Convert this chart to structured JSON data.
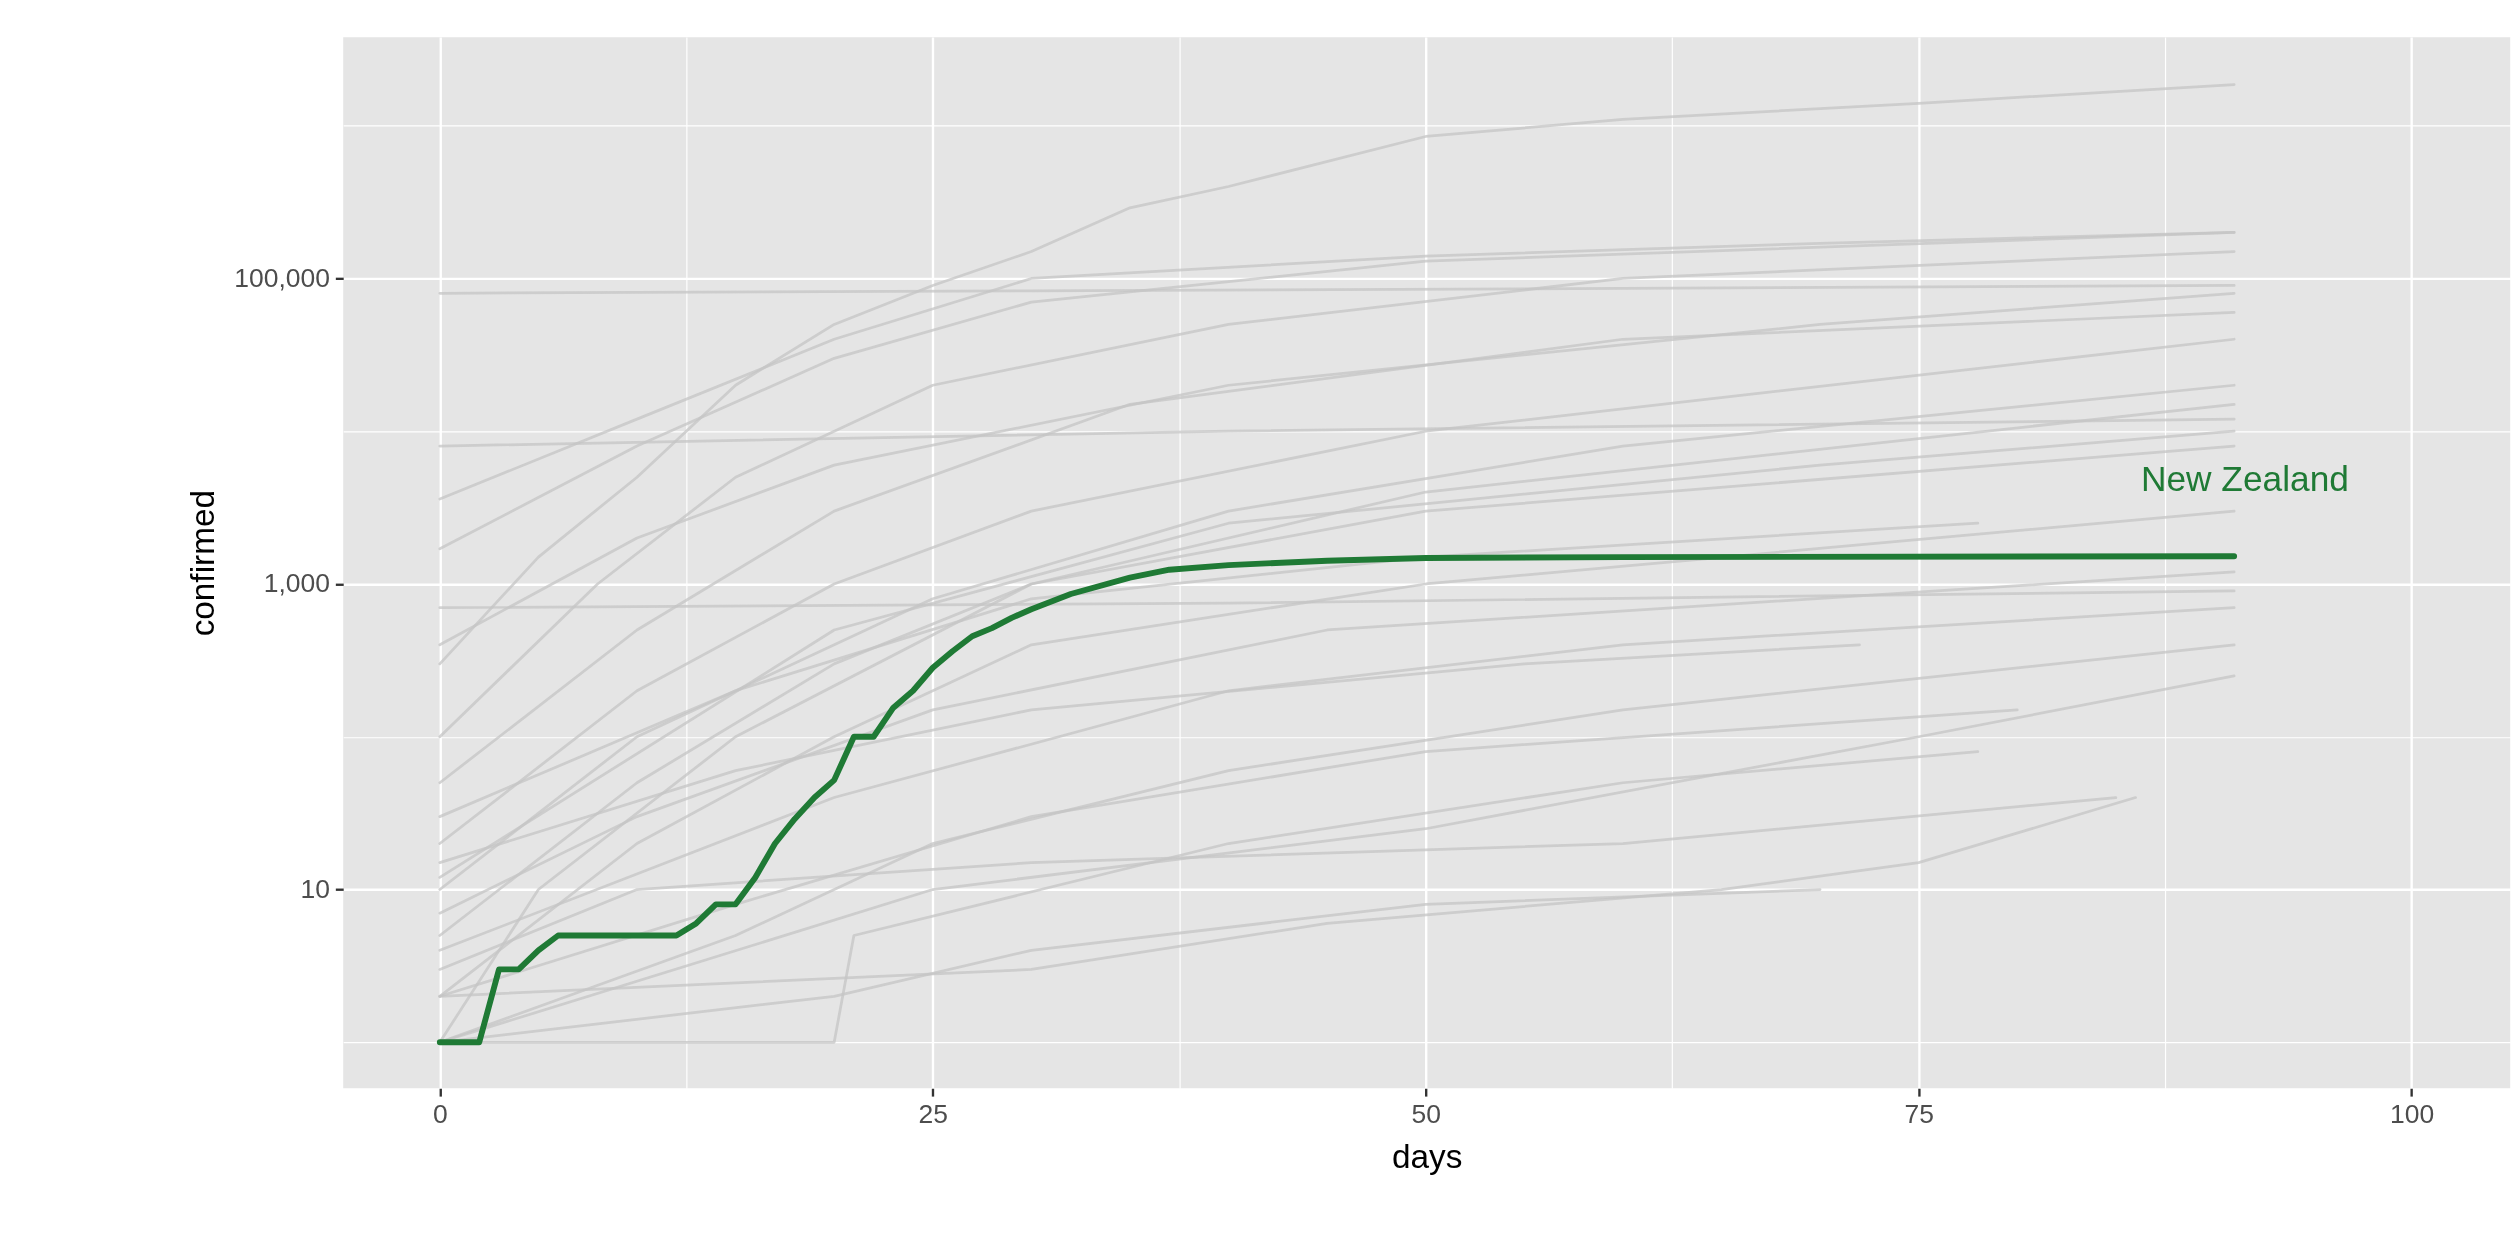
{
  "chart_data": {
    "type": "line",
    "xlabel": "days",
    "ylabel": "confirmed",
    "xlim": [
      -4.9,
      105
    ],
    "xticks": [
      0,
      {
        "value": 12.5,
        "label": null
      },
      25,
      {
        "value": 37.5,
        "label": null
      },
      50,
      {
        "value": 62.5,
        "label": null
      },
      75,
      {
        "value": 87.5,
        "label": null
      },
      100
    ],
    "ylim": [
      0.5,
      3800000
    ],
    "yticks": [
      {
        "value": 1,
        "label": null
      },
      10,
      {
        "value": 100,
        "label": null
      },
      {
        "value": 1000,
        "label": "1,000"
      },
      {
        "value": 10000,
        "label": null
      },
      {
        "value": 100000,
        "label": "100,000"
      },
      {
        "value": 1000000,
        "label": null
      }
    ],
    "log": "y",
    "grid": true,
    "marker": "none",
    "line_style": "solid",
    "series": [
      {
        "color": "#c4c4c4",
        "x": [
          0,
          5,
          10,
          15,
          20,
          25,
          30,
          35,
          40,
          50,
          60,
          75,
          91
        ],
        "values": [
          300,
          1500,
          5000,
          20000,
          50000,
          90000,
          150000,
          290000,
          400000,
          850000,
          1100000,
          1400000,
          1860000
        ]
      },
      {
        "color": "#c4c4c4",
        "x": [
          0,
          30,
          60,
          91
        ],
        "values": [
          80000,
          83000,
          86000,
          90000
        ]
      },
      {
        "color": "#c4c4c4",
        "x": [
          0,
          40,
          91
        ],
        "values": [
          700,
          750,
          900
        ]
      },
      {
        "color": "#c4c4c4",
        "x": [
          0,
          40,
          91
        ],
        "values": [
          8000,
          10000,
          12000
        ]
      },
      {
        "color": "#c4c4c4",
        "x": [
          0,
          10,
          20,
          30,
          50,
          70,
          91
        ],
        "values": [
          3600,
          12000,
          40000,
          100000,
          140000,
          170000,
          200000
        ]
      },
      {
        "color": "#c4c4c4",
        "x": [
          0,
          10,
          20,
          30,
          50,
          91
        ],
        "values": [
          1700,
          8000,
          30000,
          70000,
          130000,
          200000
        ]
      },
      {
        "color": "#c4c4c4",
        "x": [
          0,
          10,
          20,
          30,
          50,
          91
        ],
        "values": [
          20,
          200,
          1000,
          3000,
          10000,
          40000
        ]
      },
      {
        "color": "#c4c4c4",
        "x": [
          0,
          10,
          20,
          30,
          50,
          91
        ],
        "values": [
          5,
          50,
          300,
          1000,
          3000,
          8000
        ]
      },
      {
        "color": "#c4c4c4",
        "x": [
          0,
          10,
          20,
          30,
          50,
          91
        ],
        "values": [
          2,
          20,
          100,
          400,
          1000,
          3000
        ]
      },
      {
        "color": "#c4c4c4",
        "x": [
          0,
          15,
          25,
          40,
          60,
          91
        ],
        "values": [
          1,
          5,
          20,
          60,
          150,
          400
        ]
      },
      {
        "color": "#c4c4c4",
        "x": [
          0,
          20,
          30,
          50,
          70
        ],
        "values": [
          1,
          2,
          4,
          8,
          10
        ]
      },
      {
        "color": "#c4c4c4",
        "x": [
          0,
          10,
          30,
          60,
          85
        ],
        "values": [
          3,
          10,
          15,
          20,
          40
        ]
      },
      {
        "color": "#c4c4c4",
        "x": [
          0,
          10,
          25,
          40,
          60,
          91
        ],
        "values": [
          10,
          100,
          800,
          3000,
          8000,
          20000
        ]
      },
      {
        "color": "#c4c4c4",
        "x": [
          0,
          10,
          20,
          35,
          60,
          91
        ],
        "values": [
          50,
          500,
          3000,
          15000,
          40000,
          60000
        ]
      },
      {
        "color": "#c4c4c4",
        "x": [
          0,
          8,
          15,
          25,
          40,
          60,
          91
        ],
        "values": [
          100,
          1000,
          5000,
          20000,
          50000,
          100000,
          150000
        ]
      },
      {
        "color": "#c4c4c4",
        "x": [
          0,
          15,
          30,
          50,
          78
        ],
        "values": [
          30,
          200,
          800,
          1500,
          2500
        ]
      },
      {
        "color": "#c4c4c4",
        "x": [
          0,
          15,
          30,
          50,
          80
        ],
        "values": [
          2,
          8,
          30,
          80,
          150
        ]
      },
      {
        "color": "#c4c4c4",
        "x": [
          0,
          20,
          40,
          60,
          91
        ],
        "values": [
          4,
          40,
          200,
          400,
          700
        ]
      },
      {
        "color": "#c4c4c4",
        "x": [
          0,
          10,
          25,
          45,
          91
        ],
        "values": [
          7,
          30,
          150,
          500,
          1200
        ]
      },
      {
        "color": "#c4c4c4",
        "x": [
          0,
          5,
          15,
          30,
          50,
          91
        ],
        "values": [
          1,
          10,
          100,
          1000,
          4000,
          15000
        ]
      },
      {
        "color": "#c4c4c4",
        "x": [
          0,
          20,
          40,
          70,
          91
        ],
        "values": [
          12,
          500,
          2500,
          6000,
          10000
        ]
      },
      {
        "color": "#c4c4c4",
        "x": [
          0,
          20,
          21,
          40,
          60,
          78
        ],
        "values": [
          1,
          1,
          5,
          20,
          50,
          80
        ]
      },
      {
        "color": "#c4c4c4",
        "x": [
          0,
          30,
          45,
          65,
          75,
          86
        ],
        "values": [
          2,
          3,
          6,
          10,
          15,
          40
        ]
      },
      {
        "color": "#c4c4c4",
        "x": [
          0,
          25,
          50,
          75,
          91
        ],
        "values": [
          1,
          10,
          25,
          100,
          250
        ]
      },
      {
        "color": "#c4c4c4",
        "x": [
          0,
          10,
          20,
          40,
          70,
          91
        ],
        "values": [
          400,
          2000,
          6000,
          20000,
          50000,
          80000
        ]
      },
      {
        "color": "#c4c4c4",
        "x": [
          0,
          15,
          30,
          55,
          72
        ],
        "values": [
          15,
          60,
          150,
          300,
          400
        ]
      },
      {
        "name": "New Zealand",
        "color": "#1f7a35",
        "x": [
          0,
          2,
          3,
          4,
          5,
          6,
          12,
          13,
          14,
          15,
          16,
          17,
          18,
          19,
          20,
          21,
          22,
          23,
          24,
          25,
          26,
          27,
          28,
          29,
          30,
          32,
          35,
          37,
          40,
          45,
          50,
          60,
          91
        ],
        "values": [
          1,
          1,
          3,
          3,
          4,
          5,
          5,
          6,
          8,
          8,
          12,
          20,
          29,
          40,
          52,
          100,
          100,
          155,
          200,
          283,
          363,
          455,
          514,
          600,
          684,
          860,
          1100,
          1240,
          1330,
          1420,
          1480,
          1500,
          1520
        ]
      }
    ]
  }
}
